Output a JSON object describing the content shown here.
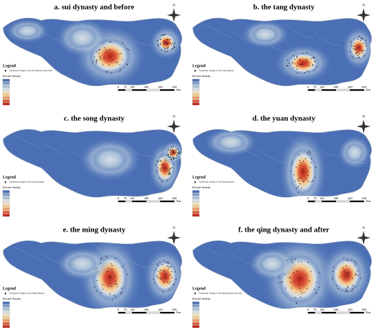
{
  "panels": [
    {
      "title": "a. sui dynasty and before",
      "legend_title": "Legend",
      "point_label": "Traditional villages of the Sui Dynasty and before",
      "density_title": "Kernel density",
      "north": "N",
      "scale": [
        "0",
        "70",
        "140",
        "280",
        "420",
        "560"
      ],
      "scale_unit": "Km"
    },
    {
      "title": "b. the tang dynasty",
      "legend_title": "Legend",
      "point_label": "Traditional villages of the Tang Dynasty",
      "density_title": "Kernel density",
      "north": "N",
      "scale": [
        "0",
        "70",
        "140",
        "280",
        "420",
        "560"
      ],
      "scale_unit": "Km"
    },
    {
      "title": "c. the song dynasty",
      "legend_title": "Legend",
      "point_label": "Traditional villages of the Song Dynasty",
      "density_title": "Kernel density",
      "north": "N",
      "scale": [
        "0",
        "70",
        "140",
        "280",
        "420",
        "560"
      ],
      "scale_unit": "Km"
    },
    {
      "title": "d. the yuan dynasty",
      "legend_title": "Legend",
      "point_label": "Traditional villages of the Yuan Dynasty",
      "density_title": "Kernel density",
      "north": "N",
      "scale": [
        "0",
        "70",
        "140",
        "280",
        "420",
        "560"
      ],
      "scale_unit": "Km"
    },
    {
      "title": "e. the ming dynasty",
      "legend_title": "Legend",
      "point_label": "Traditional villages of the Ming Dynasty",
      "density_title": "Kernel density",
      "north": "N",
      "scale": [
        "0",
        "70",
        "140",
        "280",
        "420",
        "560"
      ],
      "scale_unit": "Km"
    },
    {
      "title": "f. the qing dynasty and after",
      "legend_title": "Legend",
      "point_label": "Traditional villages of the Qing Dynasty and after",
      "density_title": "Kernel density",
      "north": "N",
      "scale": [
        "0",
        "70",
        "140",
        "280",
        "420",
        "560"
      ],
      "scale_unit": "Km"
    }
  ]
}
